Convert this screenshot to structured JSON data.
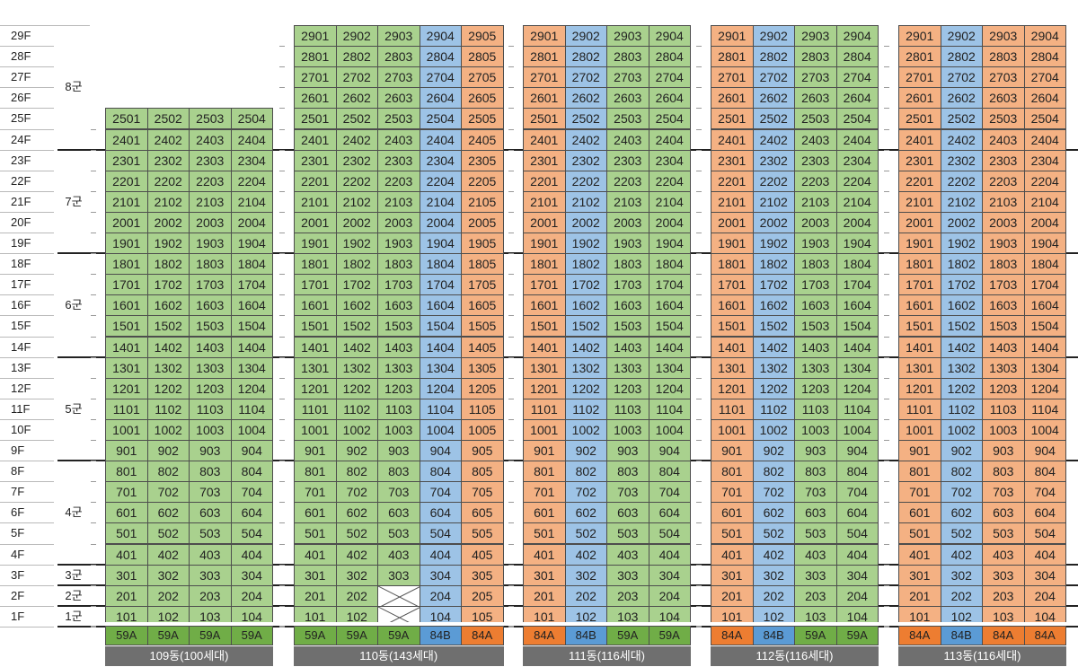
{
  "floors": [
    "29F",
    "28F",
    "27F",
    "26F",
    "25F",
    "24F",
    "23F",
    "22F",
    "21F",
    "20F",
    "19F",
    "18F",
    "17F",
    "16F",
    "15F",
    "14F",
    "13F",
    "12F",
    "11F",
    "10F",
    "9F",
    "8F",
    "7F",
    "6F",
    "5F",
    "4F",
    "3F",
    "2F",
    "1F"
  ],
  "groups": [
    {
      "label": "8군"
    },
    {
      "label": "7군"
    },
    {
      "label": "6군"
    },
    {
      "label": "5군"
    },
    {
      "label": "4군"
    },
    {
      "label": "3군"
    },
    {
      "label": "2군"
    },
    {
      "label": "1군"
    }
  ],
  "colors": {
    "green": "#a9d18e",
    "blue": "#9dc3e6",
    "orange": "#f4b183",
    "footer": "#6f6f6f",
    "green_type": "#70ad47",
    "blue_type": "#5b9bd5",
    "orange_type": "#ed7d31"
  },
  "buildings": [
    {
      "name": "109동(100세대)",
      "top_floor": 25,
      "columns": [
        {
          "line": "01",
          "color": "green",
          "type": "59A"
        },
        {
          "line": "02",
          "color": "green",
          "type": "59A"
        },
        {
          "line": "03",
          "color": "green",
          "type": "59A"
        },
        {
          "line": "04",
          "color": "green",
          "type": "59A"
        }
      ],
      "missing": []
    },
    {
      "name": "110동(143세대)",
      "top_floor": 29,
      "columns": [
        {
          "line": "01",
          "color": "green",
          "type": "59A"
        },
        {
          "line": "02",
          "color": "green",
          "type": "59A"
        },
        {
          "line": "03",
          "color": "green",
          "type": "59A"
        },
        {
          "line": "04",
          "color": "blue",
          "type": "84B"
        },
        {
          "line": "05",
          "color": "orange",
          "type": "84A"
        }
      ],
      "missing": [
        {
          "floor": 1,
          "line": "03"
        },
        {
          "floor": 2,
          "line": "03"
        }
      ]
    },
    {
      "name": "111동(116세대)",
      "top_floor": 29,
      "columns": [
        {
          "line": "01",
          "color": "orange",
          "type": "84A"
        },
        {
          "line": "02",
          "color": "blue",
          "type": "84B"
        },
        {
          "line": "03",
          "color": "green",
          "type": "59A"
        },
        {
          "line": "04",
          "color": "green",
          "type": "59A"
        }
      ],
      "missing": []
    },
    {
      "name": "112동(116세대)",
      "top_floor": 29,
      "columns": [
        {
          "line": "01",
          "color": "orange",
          "type": "84A"
        },
        {
          "line": "02",
          "color": "blue",
          "type": "84B"
        },
        {
          "line": "03",
          "color": "green",
          "type": "59A"
        },
        {
          "line": "04",
          "color": "green",
          "type": "59A"
        }
      ],
      "missing": []
    },
    {
      "name": "113동(116세대)",
      "top_floor": 29,
      "columns": [
        {
          "line": "01",
          "color": "orange",
          "type": "84A"
        },
        {
          "line": "02",
          "color": "blue",
          "type": "84B"
        },
        {
          "line": "03",
          "color": "orange",
          "type": "84A"
        },
        {
          "line": "04",
          "color": "orange",
          "type": "84A"
        }
      ],
      "missing": []
    }
  ]
}
